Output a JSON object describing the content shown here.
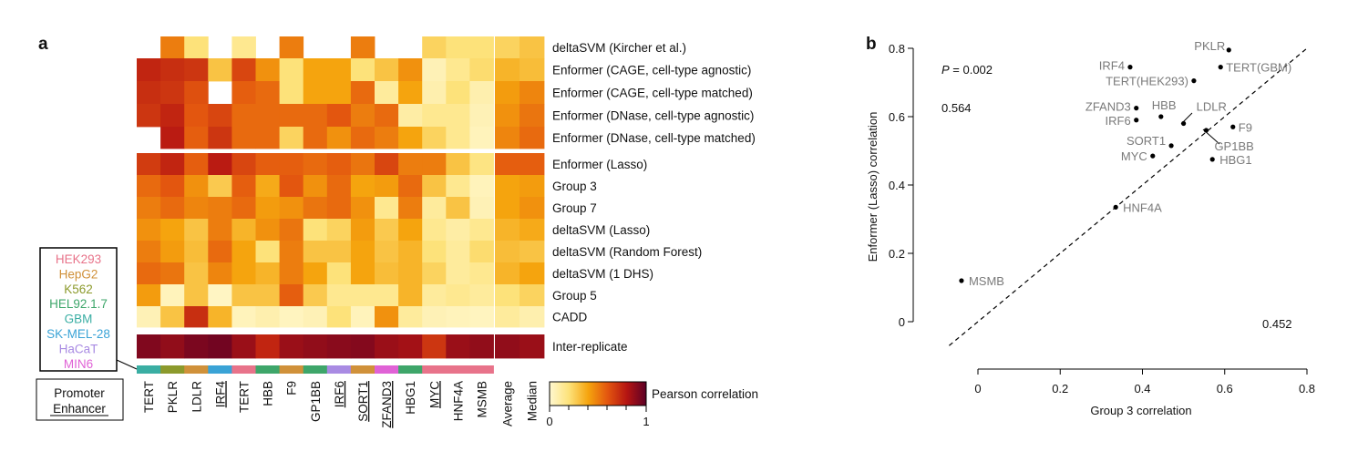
{
  "panel_a": {
    "letter": "a",
    "rows": [
      "deltaSVM (Kircher et al.)",
      "Enformer (CAGE, cell-type agnostic)",
      "Enformer (CAGE, cell-type matched)",
      "Enformer (DNase, cell-type agnostic)",
      "Enformer (DNase, cell-type matched)",
      "Enformer (Lasso)",
      "Group 3",
      "Group 7",
      "deltaSVM (Lasso)",
      "deltaSVM (Random Forest)",
      "deltaSVM (1 DHS)",
      "Group 5",
      "CADD",
      "Inter-replicate"
    ],
    "columns": [
      "TERT",
      "PKLR",
      "LDLR",
      "IRF4",
      "TERT",
      "HBB",
      "F9",
      "GP1BB",
      "IRF6",
      "SORT1",
      "ZFAND3",
      "HBG1",
      "MYC",
      "HNF4A",
      "MSMB"
    ],
    "underlined_columns": [
      "IRF4",
      "IRF6",
      "SORT1",
      "ZFAND3",
      "MYC"
    ],
    "summary_columns": [
      "Average",
      "Median"
    ],
    "cell_line_legend": [
      {
        "name": "HEK293",
        "color": "#e8738a"
      },
      {
        "name": "HepG2",
        "color": "#d0913a"
      },
      {
        "name": "K562",
        "color": "#8c9a2c"
      },
      {
        "name": "HEL92.1.7",
        "color": "#3ea66a"
      },
      {
        "name": "GBM",
        "color": "#3aaea3"
      },
      {
        "name": "SK-MEL-28",
        "color": "#3aa3d6"
      },
      {
        "name": "HaCaT",
        "color": "#a98be3"
      },
      {
        "name": "MIN6",
        "color": "#e062d6"
      }
    ],
    "column_cell_lines": [
      "GBM",
      "K562",
      "HepG2",
      "SK-MEL-28",
      "HEK293",
      "HEL92.1.7",
      "HepG2",
      "HEL92.1.7",
      "HaCaT",
      "HepG2",
      "MIN6",
      "HEL92.1.7",
      "HEK293",
      "HEK293",
      "HEK293"
    ],
    "type_legend": {
      "promoter": "Promoter",
      "enhancer": "Enhancer"
    },
    "colorbar": {
      "title": "Pearson correlation",
      "min_label": "0",
      "max_label": "1",
      "stops": [
        "#fff8d0",
        "#fde27a",
        "#f5a40e",
        "#e3560f",
        "#b51512",
        "#5c0026"
      ]
    }
  },
  "chart_data": [
    {
      "type": "heatmap",
      "rows": [
        "deltaSVM (Kircher et al.)",
        "Enformer (CAGE, cell-type agnostic)",
        "Enformer (CAGE, cell-type matched)",
        "Enformer (DNase, cell-type agnostic)",
        "Enformer (DNase, cell-type matched)",
        "Enformer (Lasso)",
        "Group 3",
        "Group 7",
        "deltaSVM (Lasso)",
        "deltaSVM (Random Forest)",
        "deltaSVM (1 DHS)",
        "Group 5",
        "CADD",
        "Inter-replicate"
      ],
      "columns": [
        "TERT",
        "PKLR",
        "LDLR",
        "IRF4",
        "TERT",
        "HBB",
        "F9",
        "GP1BB",
        "IRF6",
        "SORT1",
        "ZFAND3",
        "HBG1",
        "MYC",
        "HNF4A",
        "MSMB"
      ],
      "summary_columns": [
        "Average",
        "Median"
      ],
      "value_range": [
        0,
        1
      ],
      "missing_value": null,
      "values": [
        [
          null,
          0.5,
          0.2,
          null,
          0.15,
          null,
          0.5,
          null,
          null,
          0.5,
          null,
          null,
          0.25,
          0.2,
          0.2
        ],
        [
          0.75,
          0.72,
          0.7,
          0.3,
          0.65,
          0.45,
          0.2,
          0.4,
          0.4,
          0.2,
          0.3,
          0.45,
          0.06,
          0.15,
          0.22
        ],
        [
          0.72,
          0.7,
          0.62,
          null,
          0.58,
          0.55,
          0.2,
          0.4,
          0.4,
          0.55,
          0.12,
          0.4,
          0.08,
          0.2,
          0.08
        ],
        [
          0.7,
          0.75,
          0.6,
          0.65,
          0.55,
          0.55,
          0.55,
          0.55,
          0.6,
          0.5,
          0.55,
          0.1,
          0.15,
          0.15,
          0.06
        ],
        [
          null,
          0.78,
          0.58,
          0.7,
          0.55,
          0.55,
          0.25,
          0.55,
          0.45,
          0.55,
          0.5,
          0.4,
          0.25,
          0.15,
          0.05
        ],
        [
          0.68,
          0.75,
          0.58,
          0.78,
          0.65,
          0.58,
          0.58,
          0.55,
          0.58,
          0.52,
          0.65,
          0.5,
          0.5,
          0.3,
          0.18
        ],
        [
          0.55,
          0.6,
          0.45,
          0.28,
          0.58,
          0.38,
          0.6,
          0.45,
          0.55,
          0.4,
          0.42,
          0.55,
          0.3,
          0.15,
          0.05
        ],
        [
          0.5,
          0.55,
          0.48,
          0.5,
          0.55,
          0.42,
          0.45,
          0.52,
          0.55,
          0.45,
          0.15,
          0.5,
          0.12,
          0.3,
          0.06
        ],
        [
          0.45,
          0.4,
          0.3,
          0.5,
          0.35,
          0.45,
          0.52,
          0.2,
          0.25,
          0.42,
          0.28,
          0.4,
          0.15,
          0.1,
          0.15
        ],
        [
          0.5,
          0.42,
          0.32,
          0.55,
          0.4,
          0.2,
          0.5,
          0.3,
          0.3,
          0.4,
          0.3,
          0.35,
          0.2,
          0.12,
          0.22
        ],
        [
          0.55,
          0.52,
          0.3,
          0.48,
          0.4,
          0.35,
          0.5,
          0.4,
          0.2,
          0.4,
          0.32,
          0.35,
          0.25,
          0.12,
          0.15
        ],
        [
          0.42,
          0.05,
          0.3,
          0.03,
          0.3,
          0.3,
          0.58,
          0.28,
          0.15,
          0.15,
          0.15,
          0.35,
          0.12,
          0.15,
          0.12
        ],
        [
          0.06,
          0.3,
          0.72,
          0.35,
          0.05,
          0.08,
          0.04,
          0.06,
          0.2,
          0.05,
          0.45,
          0.12,
          0.06,
          0.05,
          0.04
        ],
        [
          0.92,
          0.88,
          0.93,
          0.95,
          0.86,
          0.75,
          0.86,
          0.88,
          0.9,
          0.91,
          0.86,
          0.84,
          0.7,
          0.86,
          0.88
        ]
      ],
      "summary_values": [
        [
          0.25,
          0.3
        ],
        [
          0.35,
          0.32
        ],
        [
          0.42,
          0.48
        ],
        [
          0.45,
          0.52
        ],
        [
          0.48,
          0.55
        ],
        [
          0.58,
          0.58
        ],
        [
          0.4,
          0.42
        ],
        [
          0.4,
          0.45
        ],
        [
          0.35,
          0.38
        ],
        [
          0.32,
          0.3
        ],
        [
          0.35,
          0.4
        ],
        [
          0.2,
          0.25
        ],
        [
          0.12,
          0.08
        ],
        [
          0.88,
          0.86
        ]
      ]
    },
    {
      "type": "scatter",
      "xlabel": "Group 3 correlation",
      "ylabel": "Enformer (Lasso) correlation",
      "xlim": [
        -0.05,
        0.8
      ],
      "ylim": [
        -0.07,
        0.82
      ],
      "x_ticks": [
        "0",
        "0.2",
        "0.4",
        "0.6",
        "0.8"
      ],
      "y_ticks": [
        "0",
        "0.2",
        "0.4",
        "0.6",
        "0.8"
      ],
      "diagonal_line": "y = x (dashed)",
      "annotations": {
        "p_value_label": "P",
        "p_value_text": " = 0.002",
        "upper_left_value": "0.564",
        "lower_right_value": "0.452"
      },
      "points": [
        {
          "label": "PKLR",
          "x": 0.61,
          "y": 0.795
        },
        {
          "label": "TERT(GBM)",
          "x": 0.59,
          "y": 0.745
        },
        {
          "label": "IRF4",
          "x": 0.37,
          "y": 0.745
        },
        {
          "label": "TERT(HEK293)",
          "x": 0.525,
          "y": 0.705
        },
        {
          "label": "ZFAND3",
          "x": 0.385,
          "y": 0.625
        },
        {
          "label": "HBB",
          "x": 0.445,
          "y": 0.6
        },
        {
          "label": "IRF6",
          "x": 0.385,
          "y": 0.59
        },
        {
          "label": "LDLR",
          "x": 0.5,
          "y": 0.58
        },
        {
          "label": "F9",
          "x": 0.62,
          "y": 0.57
        },
        {
          "label": "GP1BB",
          "x": 0.555,
          "y": 0.56
        },
        {
          "label": "SORT1",
          "x": 0.47,
          "y": 0.515
        },
        {
          "label": "MYC",
          "x": 0.425,
          "y": 0.485
        },
        {
          "label": "HBG1",
          "x": 0.57,
          "y": 0.475
        },
        {
          "label": "HNF4A",
          "x": 0.335,
          "y": 0.335
        },
        {
          "label": "MSMB",
          "x": -0.04,
          "y": 0.12
        }
      ]
    }
  ],
  "panel_b": {
    "letter": "b"
  }
}
